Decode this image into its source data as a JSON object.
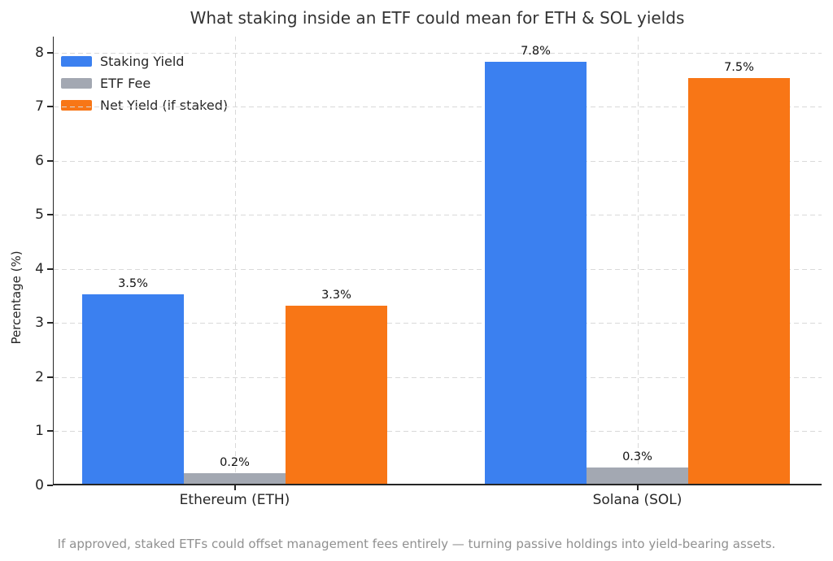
{
  "figure": {
    "title": "What staking inside an ETF could mean for ETH & SOL yields",
    "footnote": "If approved, staked ETFs could offset management fees entirely — turning passive holdings into yield-bearing assets."
  },
  "chart_data": {
    "type": "bar",
    "title": "What staking inside an ETF could mean for ETH & SOL yields",
    "categories": [
      "Ethereum (ETH)",
      "Solana (SOL)"
    ],
    "series": [
      {
        "name": "Staking Yield",
        "color": "#3b80f0",
        "values": [
          3.5,
          7.8
        ],
        "labels": [
          "3.5%",
          "7.8%"
        ]
      },
      {
        "name": "ETF Fee",
        "color": "#a3a8b2",
        "values": [
          0.2,
          0.3
        ],
        "labels": [
          "0.2%",
          "0.3%"
        ]
      },
      {
        "name": "Net Yield (if staked)",
        "color": "#f87616",
        "values": [
          3.3,
          7.5
        ],
        "labels": [
          "3.3%",
          "7.5%"
        ]
      }
    ],
    "xlabel": "",
    "ylabel": "Percentage (%)",
    "ylim": [
      0,
      8.3
    ],
    "yticks": [
      0,
      1,
      2,
      3,
      4,
      5,
      6,
      7,
      8
    ],
    "grid": true,
    "grid_style": "dashed",
    "legend_position": "upper left",
    "annotation": "If approved, staked ETFs could offset management fees entirely — turning passive holdings into yield-bearing assets."
  }
}
